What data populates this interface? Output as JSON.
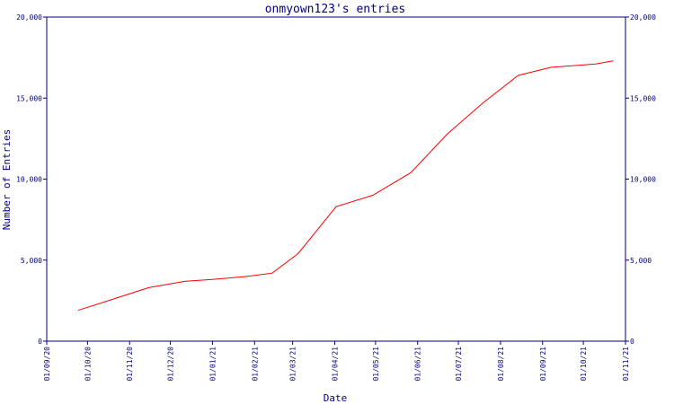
{
  "chart_data": {
    "type": "line",
    "title": "onmyown123's entries",
    "xlabel": "Date",
    "ylabel": "Number of Entries",
    "x_ticks": [
      "01/09/20",
      "01/10/20",
      "01/11/20",
      "01/12/20",
      "01/01/21",
      "01/02/21",
      "01/03/21",
      "01/04/21",
      "01/05/21",
      "01/06/21",
      "01/07/21",
      "01/08/21",
      "01/09/21",
      "01/10/21",
      "01/11/21"
    ],
    "y_ticks": [
      "0",
      "5,000",
      "10,000",
      "15,000",
      "20,000"
    ],
    "ylim": [
      0,
      20000
    ],
    "xlim": [
      "2020-09-01",
      "2021-11-01"
    ],
    "grid": false,
    "series": [
      {
        "color": "#ff0000",
        "x": [
          "2020-09-24",
          "2020-10-20",
          "2020-11-15",
          "2020-12-12",
          "2020-12-31",
          "2021-01-27",
          "2021-02-14",
          "2021-03-05",
          "2021-04-02",
          "2021-04-29",
          "2021-05-27",
          "2021-06-23",
          "2021-07-19",
          "2021-08-14",
          "2021-09-07",
          "2021-10-10",
          "2021-10-23"
        ],
        "values": [
          1900,
          2600,
          3300,
          3700,
          3800,
          4000,
          4200,
          5400,
          8300,
          9000,
          10400,
          12800,
          14700,
          16400,
          16900,
          17100,
          17300
        ]
      }
    ]
  }
}
